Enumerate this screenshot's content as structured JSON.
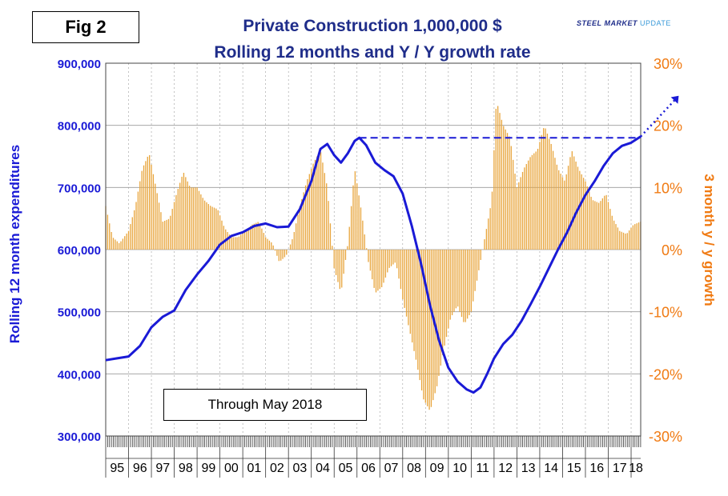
{
  "figure_tag": "Fig 2",
  "title_line1": "Private Construction 1,000,000 $",
  "title_line2": "Rolling 12 months and Y / Y growth rate",
  "brand": {
    "steel": "STEEL",
    "market": "MARKET",
    "update": "UPDATE"
  },
  "note": "Through May 2018",
  "colors": {
    "line": "#1a1ad6",
    "bars": "#e8a53c",
    "left_axis": "#1a1ad6",
    "right_axis": "#f07a12",
    "title": "#1f2d8a",
    "grid": "#9a9a9a"
  },
  "chart_data": {
    "type": "bar+line",
    "title": "Private Construction 1,000,000 $ — Rolling 12 months and Y / Y growth rate",
    "x_categories": [
      "95",
      "96",
      "97",
      "98",
      "99",
      "00",
      "01",
      "02",
      "03",
      "04",
      "05",
      "06",
      "07",
      "08",
      "09",
      "10",
      "11",
      "12",
      "13",
      "14",
      "15",
      "16",
      "17",
      "18"
    ],
    "x_range_years": [
      1995.0,
      2018.42
    ],
    "left_axis": {
      "label": "Rolling 12 month expenditures",
      "range": [
        300000,
        900000
      ],
      "ticks": [
        "300,000",
        "400,000",
        "500,000",
        "600,000",
        "700,000",
        "800,000",
        "900,000"
      ]
    },
    "right_axis": {
      "label": "3 month y / y growth",
      "range": [
        -30,
        30
      ],
      "ticks": [
        "-30%",
        "-20%",
        "-10%",
        "0%",
        "10%",
        "20%",
        "30%"
      ]
    },
    "series": [
      {
        "name": "Rolling 12 month expenditures",
        "type": "line",
        "axis": "left",
        "points": [
          [
            1995.0,
            422000
          ],
          [
            1995.5,
            425000
          ],
          [
            1996.0,
            428000
          ],
          [
            1996.5,
            445000
          ],
          [
            1997.0,
            475000
          ],
          [
            1997.5,
            492000
          ],
          [
            1998.0,
            502000
          ],
          [
            1998.5,
            535000
          ],
          [
            1999.0,
            560000
          ],
          [
            1999.5,
            582000
          ],
          [
            2000.0,
            608000
          ],
          [
            2000.5,
            622000
          ],
          [
            2001.0,
            628000
          ],
          [
            2001.5,
            638000
          ],
          [
            2002.0,
            642000
          ],
          [
            2002.5,
            636000
          ],
          [
            2003.0,
            637000
          ],
          [
            2003.5,
            665000
          ],
          [
            2004.0,
            710000
          ],
          [
            2004.4,
            762000
          ],
          [
            2004.7,
            770000
          ],
          [
            2005.0,
            752000
          ],
          [
            2005.3,
            740000
          ],
          [
            2005.6,
            755000
          ],
          [
            2005.9,
            775000
          ],
          [
            2006.1,
            780000
          ],
          [
            2006.4,
            768000
          ],
          [
            2006.8,
            740000
          ],
          [
            2007.2,
            728000
          ],
          [
            2007.6,
            718000
          ],
          [
            2008.0,
            690000
          ],
          [
            2008.4,
            638000
          ],
          [
            2008.8,
            578000
          ],
          [
            2009.2,
            510000
          ],
          [
            2009.6,
            453000
          ],
          [
            2010.0,
            410000
          ],
          [
            2010.4,
            388000
          ],
          [
            2010.8,
            375000
          ],
          [
            2011.1,
            370000
          ],
          [
            2011.4,
            378000
          ],
          [
            2011.7,
            400000
          ],
          [
            2012.0,
            425000
          ],
          [
            2012.4,
            448000
          ],
          [
            2012.8,
            463000
          ],
          [
            2013.2,
            485000
          ],
          [
            2013.6,
            512000
          ],
          [
            2014.0,
            540000
          ],
          [
            2014.4,
            570000
          ],
          [
            2014.8,
            600000
          ],
          [
            2015.2,
            628000
          ],
          [
            2015.6,
            660000
          ],
          [
            2016.0,
            688000
          ],
          [
            2016.4,
            710000
          ],
          [
            2016.8,
            735000
          ],
          [
            2017.2,
            755000
          ],
          [
            2017.6,
            767000
          ],
          [
            2018.0,
            772000
          ],
          [
            2018.42,
            782000
          ]
        ]
      },
      {
        "name": "3 month y / y growth",
        "type": "bar",
        "axis": "right",
        "unit": "%",
        "points": [
          [
            1995.0,
            7
          ],
          [
            1995.3,
            2
          ],
          [
            1995.6,
            1
          ],
          [
            1996.0,
            3
          ],
          [
            1996.3,
            7
          ],
          [
            1996.6,
            13
          ],
          [
            1996.9,
            15.5
          ],
          [
            1997.2,
            10
          ],
          [
            1997.5,
            4.5
          ],
          [
            1997.8,
            5
          ],
          [
            1998.1,
            9
          ],
          [
            1998.4,
            12.5
          ],
          [
            1998.7,
            10
          ],
          [
            1999.0,
            10
          ],
          [
            1999.3,
            8
          ],
          [
            1999.6,
            7
          ],
          [
            1999.9,
            6.5
          ],
          [
            2000.2,
            3.5
          ],
          [
            2000.5,
            2
          ],
          [
            2000.8,
            2
          ],
          [
            2001.1,
            3
          ],
          [
            2001.4,
            4
          ],
          [
            2001.7,
            4.5
          ],
          [
            2002.0,
            2
          ],
          [
            2002.3,
            1
          ],
          [
            2002.6,
            -2
          ],
          [
            2002.9,
            -1
          ],
          [
            2003.2,
            2
          ],
          [
            2003.5,
            7
          ],
          [
            2003.8,
            11
          ],
          [
            2004.1,
            14
          ],
          [
            2004.4,
            16
          ],
          [
            2004.7,
            10
          ],
          [
            2005.0,
            -3
          ],
          [
            2005.3,
            -7
          ],
          [
            2005.6,
            1
          ],
          [
            2005.9,
            13
          ],
          [
            2006.2,
            6
          ],
          [
            2006.5,
            -2
          ],
          [
            2006.8,
            -7
          ],
          [
            2007.1,
            -6
          ],
          [
            2007.4,
            -3
          ],
          [
            2007.7,
            -2
          ],
          [
            2008.0,
            -8
          ],
          [
            2008.3,
            -13
          ],
          [
            2008.6,
            -18
          ],
          [
            2008.9,
            -24
          ],
          [
            2009.2,
            -26
          ],
          [
            2009.5,
            -22
          ],
          [
            2009.8,
            -16
          ],
          [
            2010.1,
            -11
          ],
          [
            2010.4,
            -9
          ],
          [
            2010.7,
            -12
          ],
          [
            2011.0,
            -10
          ],
          [
            2011.3,
            -4
          ],
          [
            2011.6,
            2
          ],
          [
            2011.9,
            8
          ],
          [
            2012.1,
            24
          ],
          [
            2012.4,
            20
          ],
          [
            2012.7,
            18
          ],
          [
            2013.0,
            10
          ],
          [
            2013.3,
            13
          ],
          [
            2013.6,
            15
          ],
          [
            2013.9,
            16
          ],
          [
            2014.2,
            20
          ],
          [
            2014.5,
            17
          ],
          [
            2014.8,
            13
          ],
          [
            2015.1,
            11
          ],
          [
            2015.4,
            16
          ],
          [
            2015.7,
            13
          ],
          [
            2016.0,
            11
          ],
          [
            2016.3,
            8
          ],
          [
            2016.6,
            7.5
          ],
          [
            2016.9,
            9
          ],
          [
            2017.2,
            5
          ],
          [
            2017.5,
            3
          ],
          [
            2017.8,
            2.5
          ],
          [
            2018.1,
            4
          ],
          [
            2018.42,
            4.5
          ]
        ]
      }
    ],
    "annotations": [
      "dashed horizontal line at 2006 peak (~780,000) extended to 2018",
      "dotted arrow projecting upward after May 2018"
    ]
  }
}
